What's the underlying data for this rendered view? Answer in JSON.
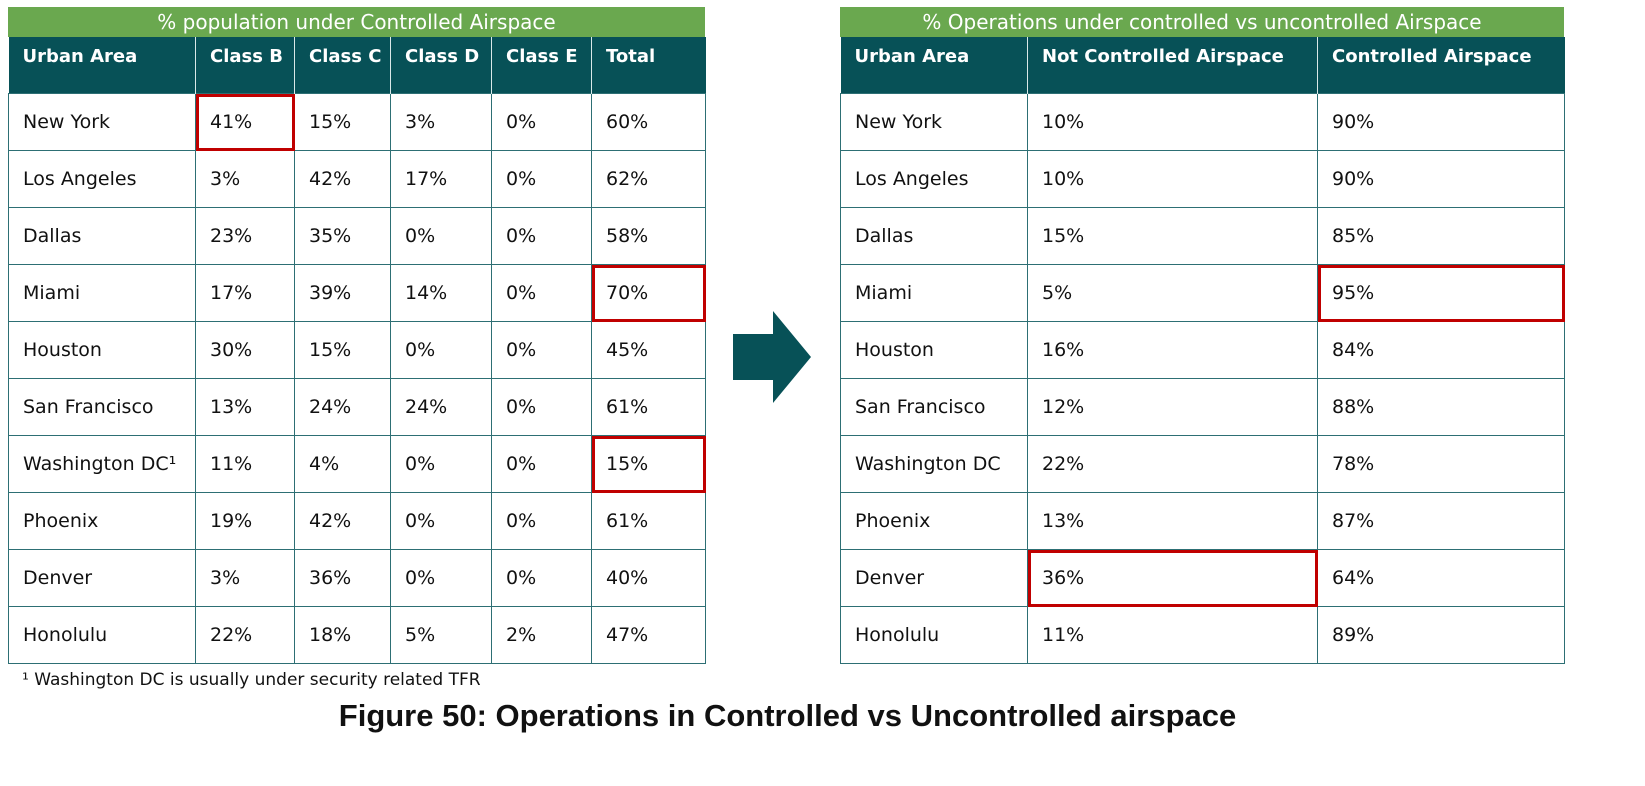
{
  "left_table": {
    "title": "% population under Controlled Airspace",
    "headers": [
      "Urban Area",
      "Class B",
      "Class C",
      "Class D",
      "Class E",
      "Total"
    ],
    "rows": [
      [
        "New York",
        "41%",
        "15%",
        "3%",
        "0%",
        "60%"
      ],
      [
        "Los Angeles",
        "3%",
        "42%",
        "17%",
        "0%",
        "62%"
      ],
      [
        "Dallas",
        "23%",
        "35%",
        "0%",
        "0%",
        "58%"
      ],
      [
        "Miami",
        "17%",
        "39%",
        "14%",
        "0%",
        "70%"
      ],
      [
        "Houston",
        "30%",
        "15%",
        "0%",
        "0%",
        "45%"
      ],
      [
        "San Francisco",
        "13%",
        "24%",
        "24%",
        "0%",
        "61%"
      ],
      [
        "Washington DC¹",
        "11%",
        "4%",
        "0%",
        "0%",
        "15%"
      ],
      [
        "Phoenix",
        "19%",
        "42%",
        "0%",
        "0%",
        "61%"
      ],
      [
        "Denver",
        "3%",
        "36%",
        "0%",
        "0%",
        "40%"
      ],
      [
        "Honolulu",
        "22%",
        "18%",
        "5%",
        "2%",
        "47%"
      ]
    ],
    "highlighted_cells": [
      [
        0,
        1
      ],
      [
        3,
        5
      ],
      [
        6,
        5
      ]
    ]
  },
  "right_table": {
    "title": "% Operations under controlled vs uncontrolled Airspace",
    "headers": [
      "Urban Area",
      "Not Controlled Airspace",
      "Controlled Airspace"
    ],
    "rows": [
      [
        "New York",
        "10%",
        "90%"
      ],
      [
        "Los Angeles",
        "10%",
        "90%"
      ],
      [
        "Dallas",
        "15%",
        "85%"
      ],
      [
        "Miami",
        "5%",
        "95%"
      ],
      [
        "Houston",
        "16%",
        "84%"
      ],
      [
        "San Francisco",
        "12%",
        "88%"
      ],
      [
        "Washington DC",
        "22%",
        "78%"
      ],
      [
        "Phoenix",
        "13%",
        "87%"
      ],
      [
        "Denver",
        "36%",
        "64%"
      ],
      [
        "Honolulu",
        "11%",
        "89%"
      ]
    ],
    "highlighted_cells": [
      [
        3,
        2
      ],
      [
        8,
        1
      ]
    ]
  },
  "footnote": "¹ Washington DC is usually under security related TFR",
  "caption": "Figure 50: Operations in Controlled vs Uncontrolled airspace",
  "colors": {
    "title_bar": "#6aa84f",
    "header_bg": "#075157",
    "highlight": "#c00000",
    "arrow": "#075157"
  },
  "icons": {
    "arrow": "right-arrow-icon"
  }
}
